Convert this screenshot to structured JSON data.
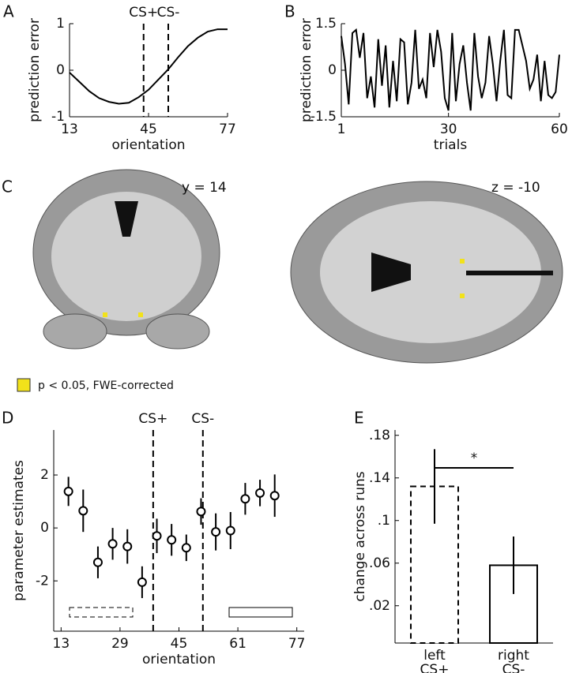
{
  "chart_data": [
    {
      "type": "line",
      "panel": "A",
      "x_label": "orientation",
      "y_label": "prediction error",
      "x": [
        13,
        17,
        21,
        25,
        29,
        33,
        37,
        41,
        45,
        49,
        53,
        57,
        61,
        65,
        69,
        73,
        77
      ],
      "values": [
        -0.05,
        -0.25,
        -0.45,
        -0.6,
        -0.68,
        -0.72,
        -0.7,
        -0.58,
        -0.42,
        -0.2,
        0.02,
        0.28,
        0.52,
        0.7,
        0.83,
        0.88,
        0.88
      ],
      "color": "#000000",
      "xlim": [
        13,
        77
      ],
      "ylim": [
        -1,
        1
      ],
      "xticks": [
        13,
        45,
        77
      ],
      "yticks": [
        -1,
        0,
        1
      ],
      "annotations": [
        {
          "x": 43,
          "label": "CS+"
        },
        {
          "x": 53,
          "label": "CS-"
        }
      ]
    },
    {
      "type": "line",
      "panel": "B",
      "x_label": "trials",
      "y_label": "prediction error",
      "x": [
        1,
        2,
        3,
        4,
        5,
        6,
        7,
        8,
        9,
        10,
        11,
        12,
        13,
        14,
        15,
        16,
        17,
        18,
        19,
        20,
        21,
        22,
        23,
        24,
        25,
        26,
        27,
        28,
        29,
        30,
        31,
        32,
        33,
        34,
        35,
        36,
        37,
        38,
        39,
        40,
        41,
        42,
        43,
        44,
        45,
        46,
        47,
        48,
        49,
        50,
        51,
        52,
        53,
        54,
        55,
        56,
        57,
        58,
        59,
        60
      ],
      "values": [
        1.1,
        0.2,
        -1.1,
        1.2,
        1.3,
        0.4,
        1.2,
        -0.9,
        -0.2,
        -1.2,
        1.0,
        -0.5,
        0.8,
        -1.2,
        0.3,
        -1.0,
        1.0,
        0.9,
        -1.1,
        -0.4,
        1.3,
        -0.6,
        -0.3,
        -0.9,
        1.2,
        0.1,
        1.3,
        0.6,
        -0.9,
        -1.3,
        1.2,
        -1.0,
        0.2,
        0.8,
        -0.4,
        -1.3,
        1.2,
        -0.2,
        -0.9,
        -0.4,
        1.1,
        0.2,
        -1.0,
        0.3,
        1.3,
        -0.8,
        -0.9,
        1.3,
        1.3,
        0.8,
        0.3,
        -0.6,
        -0.3,
        0.5,
        -1.0,
        0.3,
        -0.8,
        -0.9,
        -0.7,
        0.5
      ],
      "color": "#000000",
      "xlim": [
        1,
        60
      ],
      "ylim": [
        -1.5,
        1.5
      ],
      "xticks": [
        1,
        30,
        60
      ],
      "yticks": [
        -1.5,
        0,
        1.5
      ]
    },
    {
      "type": "errorbar",
      "panel": "D",
      "x_label": "orientation",
      "y_label": "parameter estimates",
      "x": [
        15,
        19,
        23,
        27,
        31,
        35,
        39,
        43,
        47,
        51,
        55,
        59,
        63,
        67,
        71
      ],
      "values": [
        1.38,
        0.65,
        -1.3,
        -0.6,
        -0.7,
        -2.05,
        -0.3,
        -0.45,
        -0.75,
        0.62,
        -0.15,
        -0.1,
        1.1,
        1.32,
        1.22
      ],
      "errors": [
        0.55,
        0.8,
        0.6,
        0.6,
        0.65,
        0.6,
        0.65,
        0.6,
        0.5,
        0.5,
        0.7,
        0.7,
        0.6,
        0.5,
        0.8
      ],
      "color": "#000000",
      "xlim": [
        11,
        79
      ],
      "ylim": [
        -3.9,
        3.7
      ],
      "xticks": [
        13,
        29,
        45,
        61,
        77
      ],
      "yticks": [
        -2,
        0,
        2
      ],
      "annotations": [
        {
          "x": 38,
          "label": "CS+"
        },
        {
          "x": 51.5,
          "label": "CS-"
        }
      ]
    },
    {
      "type": "bar",
      "panel": "E",
      "y_label": "change across runs",
      "categories": [
        "left",
        "right"
      ],
      "sublabels": [
        "CS+",
        "CS-"
      ],
      "values": [
        0.132,
        0.058
      ],
      "errors": [
        0.035,
        0.027
      ],
      "bar_styles": [
        "dashed",
        "solid"
      ],
      "color": "#000000",
      "ylim": [
        -0.015,
        0.185
      ],
      "yticks": [
        {
          "value": 0.02,
          "label": ".02"
        },
        {
          "value": 0.06,
          "label": ".06"
        },
        {
          "value": 0.1,
          "label": ".1"
        },
        {
          "value": 0.14,
          "label": ".14"
        },
        {
          "value": 0.18,
          "label": ".18"
        }
      ],
      "significance": "*"
    }
  ],
  "panel_c": {
    "label": "C",
    "coronal": "y = 14",
    "axial": "z = -10",
    "legend": "p < 0.05, FWE-corrected"
  }
}
